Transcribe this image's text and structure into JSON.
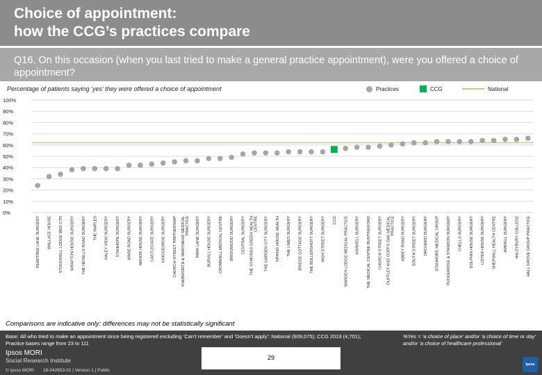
{
  "header": {
    "title_line1": "Choice of appointment:",
    "title_line2": "how the CCG’s practices compare",
    "question": "Q16. On this occasion (when you last tried to make a general practice appointment), were you offered a choice of appointment?"
  },
  "subtitle": "Percentage of patients saying ‘yes’ they were offered a choice of appointment",
  "legend": {
    "practices": "Practices",
    "ccg": "CCG",
    "national": "National"
  },
  "colors": {
    "practice": "#a6a6a6",
    "ccg": "#00b050",
    "national": "#c9c28a",
    "title_band": "#8c8c8c",
    "question_band": "#a8a8a8",
    "footer": "#404040"
  },
  "chart_data": {
    "type": "scatter",
    "title": "",
    "xlabel": "",
    "ylabel": "",
    "ylim": [
      0,
      100
    ],
    "y_ticks": [
      "0%",
      "10%",
      "20%",
      "30%",
      "40%",
      "50%",
      "60%",
      "70%",
      "80%",
      "90%",
      "100%"
    ],
    "national_value": 62,
    "ccg_index": 26,
    "categories": [
      "PEARTREE LANE SURGERY",
      "WALLACE HOUSE",
      "STOCKWELL LODGE MED CTR",
      "WRAFTON HOUSE SURGERY",
      "THE NEVELLS ROAD SURGERY",
      "THE MAPLES",
      "HALEY VIEW SURGERY",
      "STANHOPE SURGERY",
      "WARE ROAD SURGERY",
      "MANOR HOUSE SURGERY",
      "CASTLEGATE SURGERY",
      "KINGGEORGE SURGERY",
      "CHURCH STREET PARTNERSHIP",
      "KNEBWORTH & MARYMEAD MEDICAL PRACTICE",
      "PARK LANE SURGERY",
      "BURVILL HOUSE SURGERY",
      "CROMWELL MEDICAL CENTRE",
      "BRIDGWOOD SURGERY",
      "CENTRAL SURGERY",
      "THE SYMONDS GREEN HEALTH CENTRE",
      "THE GARDEN CITY SURGERY",
      "SPRING HOUSE HEALTH",
      "THE LIMES SURGERY",
      "BRIDGE COTTAGE SURGERY",
      "THE BOLLERSHOTT SURGERY",
      "HIGH STREET SURGERY",
      "CCG",
      "WARDEN LODGE MEDICAL PRACTICE",
      "ASHWELL SURGERY",
      "THE MEDICAL CENTRE BUNTINGFORD",
      "CHURCH STREET SURGERY",
      "DUFFLEY AND GOFFS OAK MEDICAL PRACTICE",
      "ABBEY ROAD SURGERY",
      "SOUTH STREET SURGERY",
      "ORCHARD SURGERY",
      "STANMORE MEDICAL GROUP",
      "PUCKERIDGE & STANDON SURGERY",
      "CHELLS SURGERY",
      "DOLPHIN HOUSE SURGERY",
      "LISTER HOUSE SURGERY",
      "SHEPHALL HEALTH CENTRE",
      "AMWELL SURGERY",
      "HALEYBURY COLLEGE",
      "HALL GROVE GROUP PRACTICE"
    ],
    "values": [
      24,
      32,
      34,
      38,
      39,
      39,
      39,
      39,
      42,
      42,
      43,
      44,
      45,
      46,
      46,
      48,
      48,
      49,
      52,
      53,
      53,
      53,
      54,
      54,
      54,
      54,
      56,
      57,
      58,
      58,
      59,
      60,
      61,
      62,
      62,
      63,
      63,
      63,
      63,
      64,
      64,
      65,
      65,
      66
    ]
  },
  "notes": {
    "comparison": "Comparisons are indicative only: differences may not be statistically significant",
    "base": "Base: All who tried to make an appointment since being registered excluding ‘Can’t remember’ and ‘Doesn’t apply’: National (609,075); CCG 2019 (4,701); Practice bases range from 23 to 111",
    "definition": "%Yes = ‘a choice of place’ and/or ‘a choice of time or day’ and/or ‘a choice of healthcare professional’",
    "page_number": "29",
    "logo_line1": "Ipsos MORI",
    "logo_line2": "Social Research Institute",
    "copyright": "© Ipsos MORI",
    "reference": "18-042653-01 | Version 1 | Public",
    "logo_mark": "Ipsos"
  }
}
